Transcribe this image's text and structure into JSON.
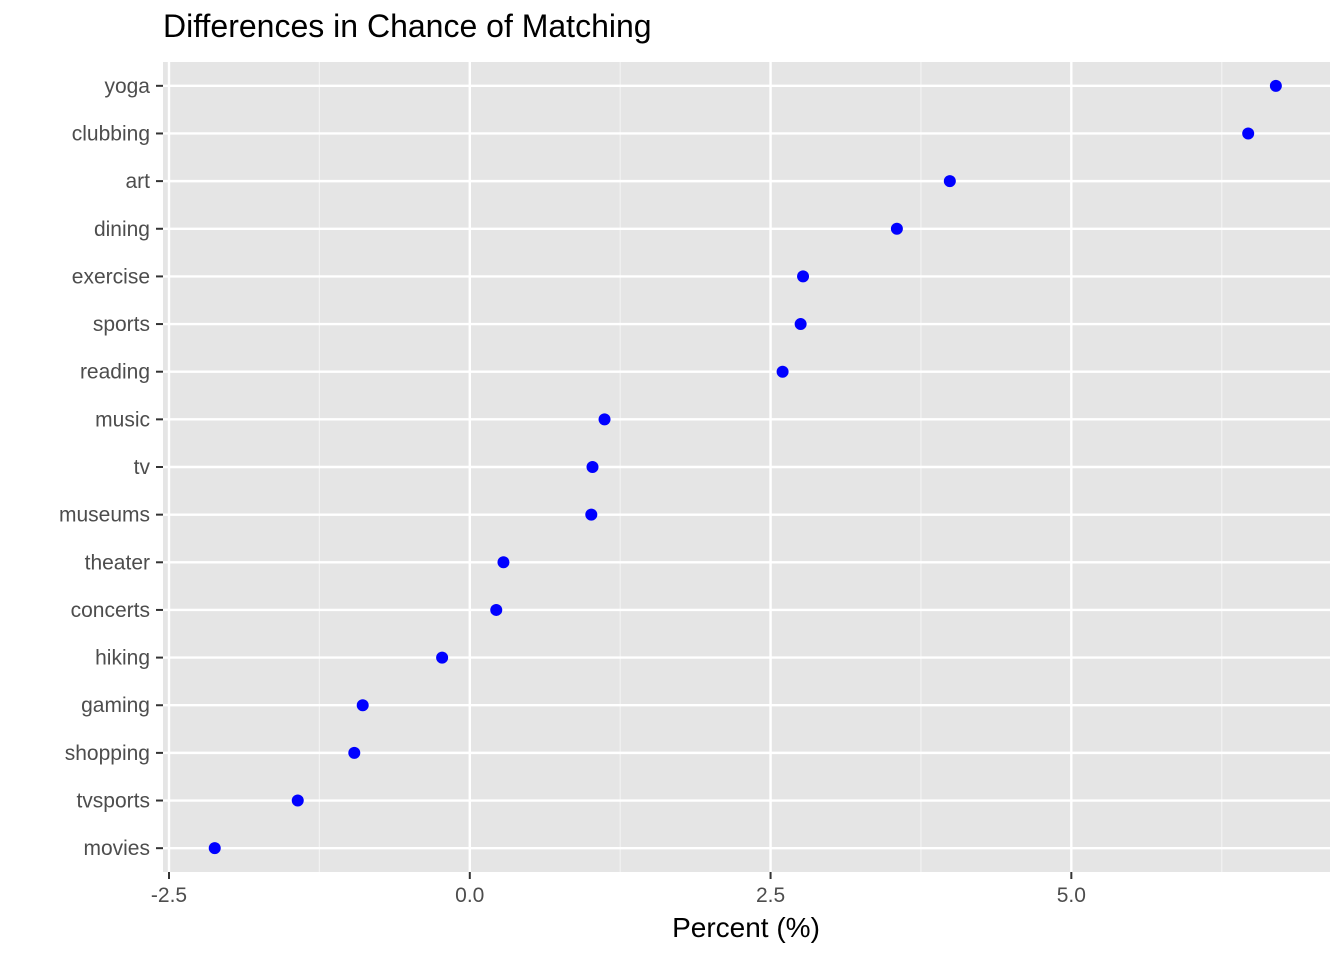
{
  "chart_data": {
    "type": "scatter",
    "title": "Differences in Chance of Matching",
    "xlabel": "Percent (%)",
    "ylabel": "",
    "xlim": [
      -2.55,
      7.15
    ],
    "x_ticks": [
      -2.5,
      0.0,
      2.5,
      5.0
    ],
    "x_tick_labels": [
      "-2.5",
      "0.0",
      "2.5",
      "5.0"
    ],
    "grid": true,
    "background": "#e5e5e5",
    "point_color": "#0000ff",
    "categories": [
      "yoga",
      "clubbing",
      "art",
      "dining",
      "exercise",
      "sports",
      "reading",
      "music",
      "tv",
      "museums",
      "theater",
      "concerts",
      "hiking",
      "gaming",
      "shopping",
      "tvsports",
      "movies"
    ],
    "values": [
      6.7,
      6.47,
      3.99,
      3.55,
      2.77,
      2.75,
      2.6,
      1.12,
      1.02,
      1.01,
      0.28,
      0.22,
      -0.23,
      -0.89,
      -0.96,
      -1.43,
      -2.12
    ]
  }
}
